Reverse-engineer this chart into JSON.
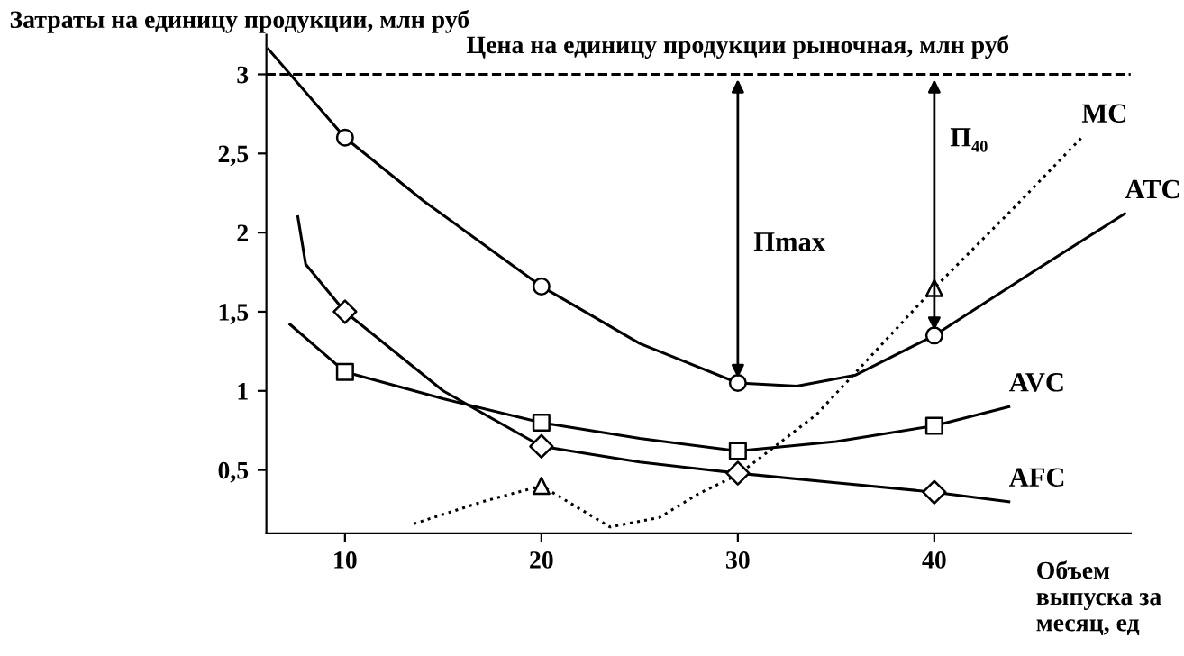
{
  "chart_data": {
    "type": "line",
    "ylabel": "Затраты на единицу продукции, млн руб",
    "xlabel": "Объем выпуска за месяц, ед",
    "xlim": [
      6,
      50
    ],
    "ylim": [
      0.1,
      3.25
    ],
    "xticks": [
      10,
      20,
      30,
      40
    ],
    "yticks": [
      {
        "value": 0.5,
        "label": "0,5"
      },
      {
        "value": 1,
        "label": "1"
      },
      {
        "value": 1.5,
        "label": "1,5"
      },
      {
        "value": 2,
        "label": "2"
      },
      {
        "value": 2.5,
        "label": "2,5"
      },
      {
        "value": 3,
        "label": "3"
      }
    ],
    "grid": false,
    "line_style": "solid",
    "ref_lines": [
      {
        "axis": "y",
        "value": 3,
        "label": "Цена на единицу продукции рыночная, млн руб",
        "line_style": "dashed",
        "color": "#000000"
      }
    ],
    "annotations": [
      "Пmax",
      "П₄₀"
    ],
    "series": [
      {
        "name": "ATC",
        "color": "#000000",
        "marker": "none",
        "x": [
          6.1,
          10,
          14,
          20,
          25,
          30,
          33,
          36,
          40,
          45,
          49.7
        ],
        "values": [
          3.16,
          2.6,
          2.2,
          1.66,
          1.3,
          1.05,
          1.03,
          1.1,
          1.35,
          1.75,
          2.12
        ]
      },
      {
        "name": "MC",
        "color": "#000000",
        "marker": "none",
        "line_style": "dotted",
        "x": [
          13.5,
          17,
          20,
          23.5,
          26,
          28,
          30,
          34,
          40,
          44,
          47.5
        ],
        "values": [
          0.16,
          0.3,
          0.4,
          0.14,
          0.2,
          0.35,
          0.47,
          0.85,
          1.65,
          2.15,
          2.6
        ]
      },
      {
        "name": "AVC",
        "color": "#000000",
        "marker": "none",
        "x": [
          7.2,
          10,
          15,
          20,
          25,
          30,
          35,
          40,
          43.8
        ],
        "values": [
          1.42,
          1.12,
          0.95,
          0.8,
          0.7,
          0.62,
          0.68,
          0.78,
          0.9
        ]
      },
      {
        "name": "AFC",
        "color": "#000000",
        "marker": "none",
        "x": [
          7.6,
          8,
          10,
          15,
          20,
          25,
          30,
          35,
          40,
          43.8
        ],
        "values": [
          2.1,
          1.8,
          1.5,
          1.0,
          0.65,
          0.55,
          0.48,
          0.42,
          0.36,
          0.3
        ]
      },
      {
        "type": "scatter",
        "color": "#000000",
        "marker": "circle",
        "x": [
          10,
          20,
          30,
          40
        ],
        "values": [
          2.6,
          1.66,
          1.05,
          1.35
        ]
      },
      {
        "type": "scatter",
        "color": "#000000",
        "marker": "triangle",
        "x": [
          20,
          40
        ],
        "values": [
          0.4,
          1.65
        ]
      },
      {
        "type": "scatter",
        "color": "#000000",
        "marker": "square",
        "x": [
          10,
          20,
          30,
          40
        ],
        "values": [
          1.12,
          0.8,
          0.62,
          0.78
        ]
      },
      {
        "type": "scatter",
        "color": "#000000",
        "marker": "diamond",
        "x": [
          10,
          20,
          30,
          40
        ],
        "values": [
          1.5,
          0.65,
          0.48,
          0.36
        ]
      }
    ]
  }
}
